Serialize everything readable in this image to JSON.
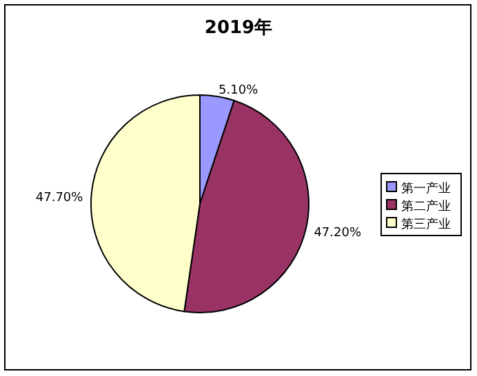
{
  "chart_data": {
    "type": "pie",
    "title": "2019年",
    "categories": [
      "第一产业",
      "第二产业",
      "第三产业"
    ],
    "values": [
      5.1,
      47.2,
      47.7
    ],
    "colors": [
      "#9999ff",
      "#993366",
      "#ffffcc"
    ],
    "value_labels": [
      "5.10%",
      "47.20%",
      "47.70%"
    ],
    "legend": "right"
  }
}
